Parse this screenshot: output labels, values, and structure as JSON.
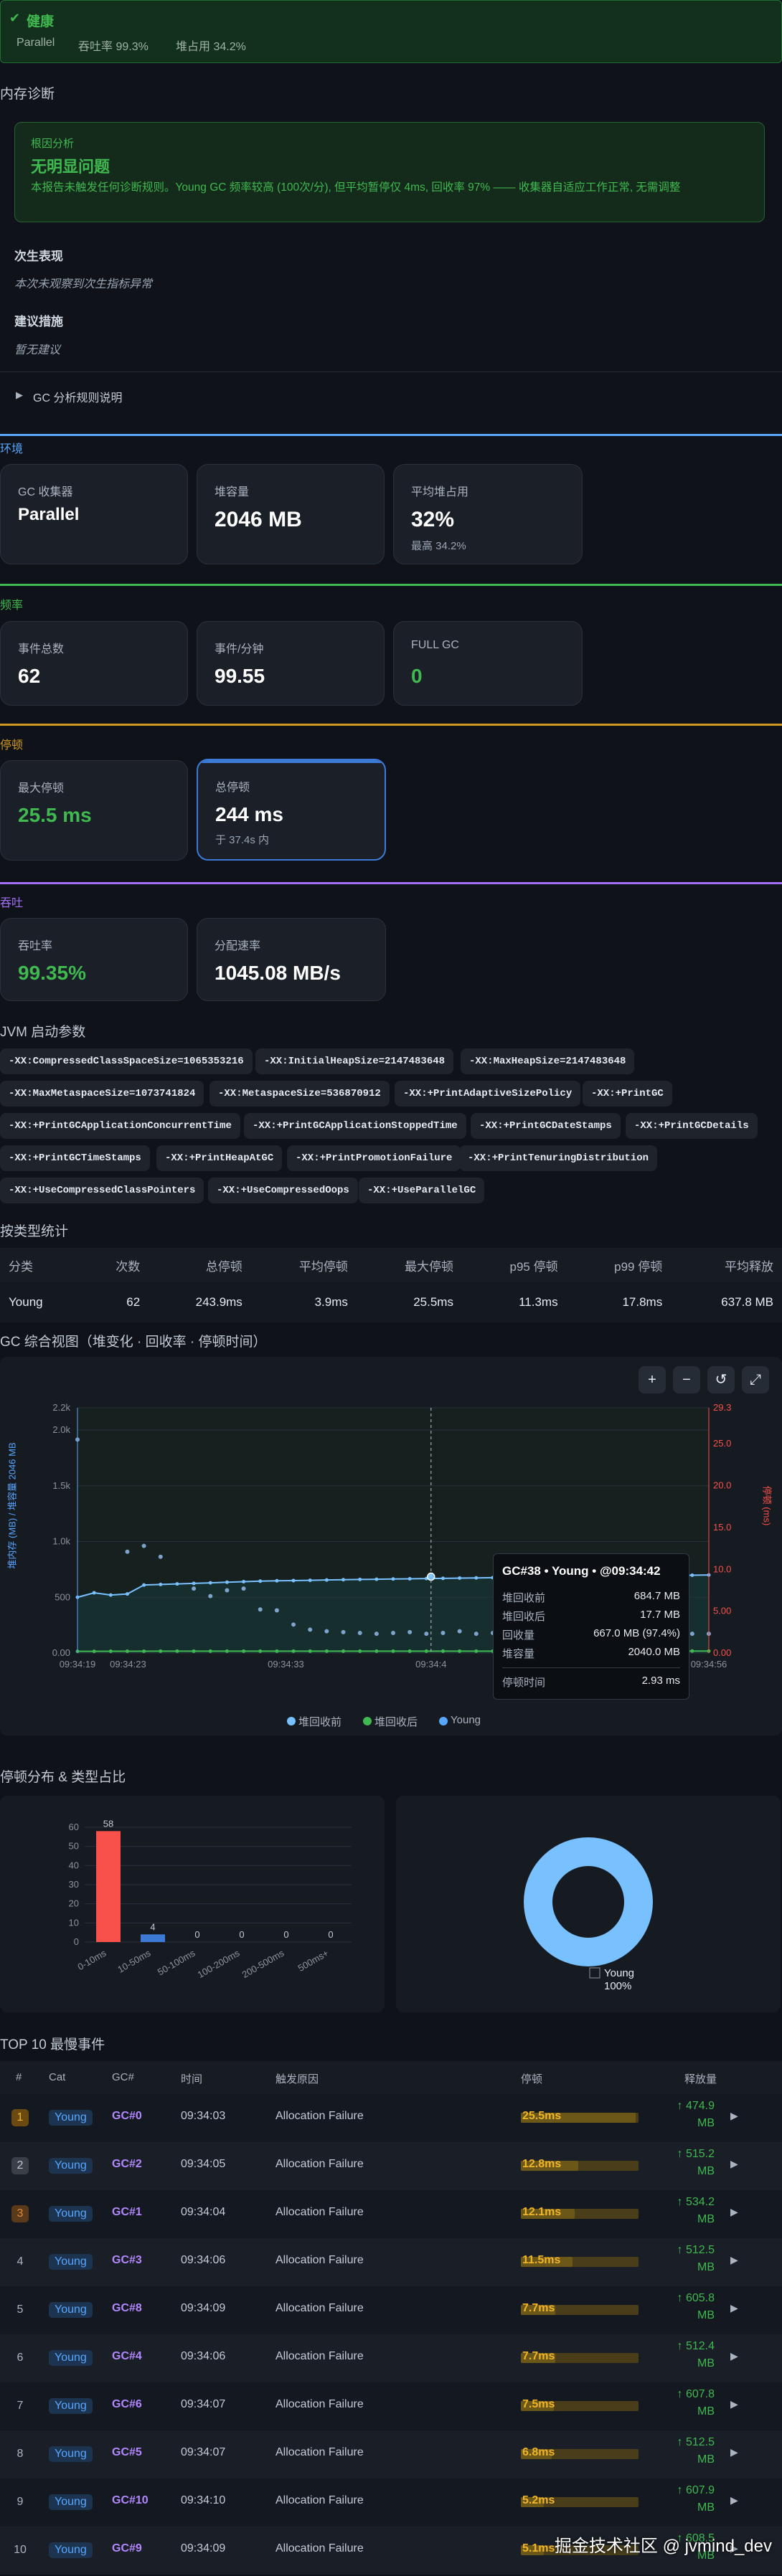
{
  "health": {
    "title": "健康",
    "collector": "Parallel",
    "throughput": "吞吐率 99.3%",
    "heap": "堆占用 34.2%"
  },
  "diagnosis": {
    "section_title": "内存诊断",
    "root_cause_label": "根因分析",
    "root_cause_title": "无明显问题",
    "root_cause_text": "本报告未触发任何诊断规则。Young GC 频率较高 (100次/分), 但平均暂停仅 4ms, 回收率 97% —— 收集器自适应工作正常, 无需调整",
    "next_label": "次生表现",
    "next_text": "本次未观察到次生指标异常",
    "advice_label": "建议措施",
    "advice_text": "暂无建议",
    "rules_toggle": "GC 分析规则说明"
  },
  "env": {
    "label": "环境",
    "cards": [
      {
        "label": "GC 收集器",
        "value": "Parallel"
      },
      {
        "label": "堆容量",
        "value": "2046 MB"
      },
      {
        "label": "平均堆占用",
        "value": "32%",
        "sub": "最高 34.2%"
      }
    ]
  },
  "freq": {
    "label": "频率",
    "cards": [
      {
        "label": "事件总数",
        "value": "62"
      },
      {
        "label": "事件/分钟",
        "value": "99.55"
      },
      {
        "label": "FULL GC",
        "value": "0"
      }
    ]
  },
  "pause": {
    "label": "停顿",
    "cards": [
      {
        "label": "最大停顿",
        "value": "25.5 ms"
      },
      {
        "label": "总停顿",
        "value": "244 ms",
        "sub": "于 37.4s 内"
      }
    ]
  },
  "throughput": {
    "label": "吞吐",
    "cards": [
      {
        "label": "吞吐率",
        "value": "99.35%"
      },
      {
        "label": "分配速率",
        "value": "1045.08 MB/s"
      }
    ]
  },
  "jvm": {
    "title": "JVM 启动参数",
    "flags": [
      "-XX:CompressedClassSpaceSize=1065353216",
      "-XX:InitialHeapSize=2147483648",
      "-XX:MaxHeapSize=2147483648",
      "-XX:MaxMetaspaceSize=1073741824",
      "-XX:MetaspaceSize=536870912",
      "-XX:+PrintAdaptiveSizePolicy",
      "-XX:+PrintGC",
      "-XX:+PrintGCApplicationConcurrentTime",
      "-XX:+PrintGCApplicationStoppedTime",
      "-XX:+PrintGCDateStamps",
      "-XX:+PrintGCDetails",
      "-XX:+PrintGCTimeStamps",
      "-XX:+PrintHeapAtGC",
      "-XX:+PrintPromotionFailure",
      "-XX:+PrintTenuringDistribution",
      "-XX:+UseCompressedClassPointers",
      "-XX:+UseCompressedOops",
      "-XX:+UseParallelGC"
    ]
  },
  "stats": {
    "title": "按类型统计",
    "headers": [
      "分类",
      "次数",
      "总停顿",
      "平均停顿",
      "最大停顿",
      "p95 停顿",
      "p99 停顿",
      "平均释放"
    ],
    "row": [
      "Young",
      "62",
      "243.9ms",
      "3.9ms",
      "25.5ms",
      "11.3ms",
      "17.8ms",
      "637.8 MB"
    ]
  },
  "overview": {
    "title": "GC 综合视图（堆变化 · 回收率 · 停顿时间）",
    "toolbar": [
      "+",
      "−",
      "↺",
      "⤢"
    ],
    "left_axis_label": "堆内存 (MB) / 堆容量 2046 MB",
    "right_axis_label": "停顿 (ms)",
    "legend": [
      "堆回收前",
      "堆回收后",
      "Young"
    ],
    "tooltip": {
      "title": "GC#38 • Young • @09:34:42",
      "rows": [
        [
          "堆回收前",
          "684.7 MB"
        ],
        [
          "堆回收后",
          "17.7 MB"
        ],
        [
          "回收量",
          "667.0 MB (97.4%)"
        ],
        [
          "堆容量",
          "2040.0 MB"
        ],
        [
          "停顿时间",
          "2.93 ms"
        ]
      ]
    },
    "crosshair_label": "09:34:4"
  },
  "chart_data": [
    {
      "type": "line",
      "title": "GC 综合视图（堆变化 · 回收率 · 停顿时间）",
      "x_ticks": [
        "09:34:19",
        "09:34:23",
        "09:34:33",
        "09:34:4",
        "09:34:53",
        "09:34:56"
      ],
      "y_left_ticks": [
        "0.00",
        "500",
        "1.0k",
        "1.5k",
        "2.0k",
        "2.2k"
      ],
      "y_right_ticks": [
        "0.00",
        "5.00",
        "10.0",
        "15.0",
        "20.0",
        "25.0",
        "29.3"
      ],
      "ylim_left": [
        0,
        2200
      ],
      "ylim_right": [
        0,
        29.3
      ],
      "series": [
        {
          "name": "堆回收前",
          "axis": "left",
          "values": [
            500,
            540,
            520,
            530,
            610,
            615,
            620,
            625,
            630,
            635,
            640,
            645,
            648,
            650,
            652,
            655,
            658,
            660,
            662,
            664,
            666,
            668,
            670,
            672,
            674,
            676,
            678,
            680,
            682,
            684,
            685,
            686,
            688,
            690,
            692,
            694,
            696,
            698,
            700
          ]
        },
        {
          "name": "堆回收后",
          "axis": "left",
          "values": [
            15,
            15,
            16,
            16,
            16,
            17,
            17,
            17,
            17,
            17,
            17,
            17,
            17,
            17,
            17,
            17,
            17,
            17,
            17,
            17,
            17,
            17,
            17,
            17,
            17,
            17,
            17,
            17,
            17,
            18,
            18,
            18,
            18,
            18,
            18,
            18,
            18,
            18,
            18
          ]
        },
        {
          "name": "Young",
          "axis": "right",
          "points": [
            [
              0,
              25.5
            ],
            [
              3,
              12.1
            ],
            [
              4,
              12.8
            ],
            [
              5,
              11.5
            ],
            [
              7,
              7.7
            ],
            [
              8,
              6.8
            ],
            [
              9,
              7.5
            ],
            [
              10,
              7.7
            ],
            [
              11,
              5.2
            ],
            [
              12,
              5.1
            ],
            [
              13,
              3.4
            ],
            [
              14,
              2.8
            ],
            [
              15,
              2.6
            ],
            [
              16,
              2.5
            ],
            [
              17,
              2.4
            ],
            [
              18,
              2.3
            ],
            [
              19,
              2.4
            ],
            [
              20,
              2.5
            ],
            [
              21,
              2.3
            ],
            [
              22,
              2.4
            ],
            [
              23,
              2.6
            ],
            [
              24,
              2.3
            ],
            [
              25,
              2.4
            ],
            [
              26,
              3.1
            ],
            [
              27,
              2.5
            ],
            [
              28,
              2.3
            ],
            [
              29,
              2.9
            ],
            [
              30,
              2.6
            ],
            [
              31,
              2.4
            ],
            [
              32,
              2.5
            ],
            [
              33,
              2.3
            ],
            [
              34,
              2.2
            ],
            [
              35,
              2.4
            ],
            [
              36,
              2.6
            ],
            [
              37,
              2.3
            ],
            [
              38,
              2.3
            ]
          ]
        }
      ]
    },
    {
      "type": "bar",
      "categories": [
        "0-10ms",
        "10-50ms",
        "50-100ms",
        "100-200ms",
        "200-500ms",
        "500ms+"
      ],
      "values": [
        58,
        4,
        0,
        0,
        0,
        0
      ],
      "ylim": [
        0,
        60
      ],
      "y_ticks": [
        "0",
        "10",
        "20",
        "30",
        "40",
        "50",
        "60"
      ]
    },
    {
      "type": "pie",
      "labels": [
        "Young"
      ],
      "values": [
        100
      ],
      "label_text": "Young",
      "pct_text": "100%"
    }
  ],
  "pause_dist_title": "停顿分布 & 类型占比",
  "top10": {
    "title": "TOP 10 最慢事件",
    "headers": [
      "#",
      "Cat",
      "GC#",
      "时间",
      "触发原因",
      "停顿",
      "释放量"
    ],
    "rows": [
      {
        "rank": "1",
        "cat": "Young",
        "gc": "GC#0",
        "time": "09:34:03",
        "cause": "Allocation Failure",
        "pause": "25.5ms",
        "pct": 1.0,
        "freed1": "↑ 474.9",
        "freed2": "MB"
      },
      {
        "rank": "2",
        "cat": "Young",
        "gc": "GC#2",
        "time": "09:34:05",
        "cause": "Allocation Failure",
        "pause": "12.8ms",
        "pct": 0.5,
        "freed1": "↑ 515.2",
        "freed2": "MB"
      },
      {
        "rank": "3",
        "cat": "Young",
        "gc": "GC#1",
        "time": "09:34:04",
        "cause": "Allocation Failure",
        "pause": "12.1ms",
        "pct": 0.47,
        "freed1": "↑ 534.2",
        "freed2": "MB"
      },
      {
        "rank": "4",
        "cat": "Young",
        "gc": "GC#3",
        "time": "09:34:06",
        "cause": "Allocation Failure",
        "pause": "11.5ms",
        "pct": 0.45,
        "freed1": "↑ 512.5",
        "freed2": "MB"
      },
      {
        "rank": "5",
        "cat": "Young",
        "gc": "GC#8",
        "time": "09:34:09",
        "cause": "Allocation Failure",
        "pause": "7.7ms",
        "pct": 0.3,
        "freed1": "↑ 605.8",
        "freed2": "MB"
      },
      {
        "rank": "6",
        "cat": "Young",
        "gc": "GC#4",
        "time": "09:34:06",
        "cause": "Allocation Failure",
        "pause": "7.7ms",
        "pct": 0.3,
        "freed1": "↑ 512.4",
        "freed2": "MB"
      },
      {
        "rank": "7",
        "cat": "Young",
        "gc": "GC#6",
        "time": "09:34:07",
        "cause": "Allocation Failure",
        "pause": "7.5ms",
        "pct": 0.29,
        "freed1": "↑ 607.8",
        "freed2": "MB"
      },
      {
        "rank": "8",
        "cat": "Young",
        "gc": "GC#5",
        "time": "09:34:07",
        "cause": "Allocation Failure",
        "pause": "6.8ms",
        "pct": 0.27,
        "freed1": "↑ 512.5",
        "freed2": "MB"
      },
      {
        "rank": "9",
        "cat": "Young",
        "gc": "GC#10",
        "time": "09:34:10",
        "cause": "Allocation Failure",
        "pause": "5.2ms",
        "pct": 0.2,
        "freed1": "↑ 607.9",
        "freed2": "MB"
      },
      {
        "rank": "10",
        "cat": "Young",
        "gc": "GC#9",
        "time": "09:34:09",
        "cause": "Allocation Failure",
        "pause": "5.1ms",
        "pct": 0.2,
        "freed1": "↑ 608.5",
        "freed2": "MB"
      }
    ]
  },
  "watermark": "掘金技术社区 @ jvmind_dev"
}
